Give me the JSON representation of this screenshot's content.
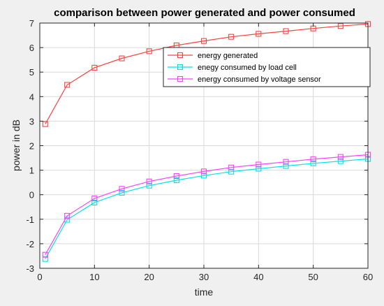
{
  "chart_data": {
    "type": "line",
    "title": "comparison between power generated and power consumed",
    "xlabel": "time",
    "ylabel": "power in dB",
    "xlim": [
      0,
      60
    ],
    "ylim": [
      -3,
      7
    ],
    "xticks": [
      0,
      10,
      20,
      30,
      40,
      50,
      60
    ],
    "yticks": [
      -3,
      -2,
      -1,
      0,
      1,
      2,
      3,
      4,
      5,
      6,
      7
    ],
    "grid": true,
    "legend_position": "top-right",
    "x": [
      1,
      5,
      10,
      15,
      20,
      25,
      30,
      35,
      40,
      45,
      50,
      55,
      60
    ],
    "series": [
      {
        "name": "energy generated",
        "color": "#ff4040",
        "marker": "square",
        "values": [
          2.88,
          4.48,
          5.18,
          5.56,
          5.85,
          6.09,
          6.27,
          6.44,
          6.56,
          6.67,
          6.78,
          6.88,
          6.96
        ]
      },
      {
        "name": "enegy consumed by load cell",
        "color": "#00e5e5",
        "marker": "square",
        "values": [
          -2.62,
          -1.02,
          -0.32,
          0.08,
          0.37,
          0.59,
          0.78,
          0.94,
          1.06,
          1.17,
          1.28,
          1.37,
          1.46
        ]
      },
      {
        "name": "energy consumed by voltage sensor",
        "color": "#ff40ff",
        "marker": "square",
        "values": [
          -2.45,
          -0.86,
          -0.15,
          0.24,
          0.54,
          0.76,
          0.95,
          1.11,
          1.23,
          1.34,
          1.45,
          1.54,
          1.63
        ]
      }
    ]
  }
}
